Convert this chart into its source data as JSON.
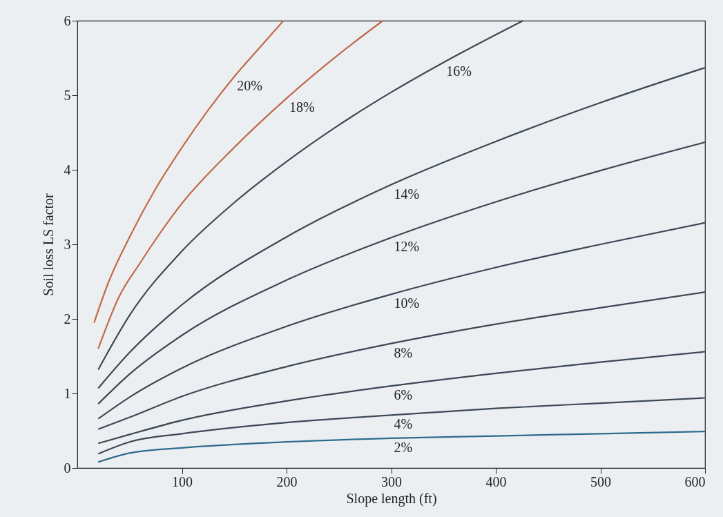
{
  "chart_data": {
    "type": "line",
    "xlabel": "Slope length (ft)",
    "ylabel": "Soil loss LS factor",
    "xlim": [
      0,
      600
    ],
    "ylim": [
      0,
      6
    ],
    "xticks": [
      100,
      200,
      300,
      400,
      500,
      600
    ],
    "yticks": [
      0,
      1,
      2,
      3,
      4,
      5,
      6
    ],
    "grid": false,
    "legend": false,
    "marker": "none",
    "line_style": "solid",
    "series": [
      {
        "name": "20%",
        "color": "#c0694a",
        "x": [
          16,
          30,
          50,
          75,
          100,
          125,
          150,
          175,
          197
        ],
        "values": [
          1.95,
          2.5,
          3.1,
          3.75,
          4.3,
          4.8,
          5.25,
          5.65,
          6
        ]
      },
      {
        "name": "18%",
        "color": "#c0694a",
        "x": [
          20,
          40,
          60,
          100,
          150,
          200,
          250,
          292
        ],
        "values": [
          1.6,
          2.3,
          2.75,
          3.55,
          4.3,
          4.96,
          5.55,
          6
        ]
      },
      {
        "name": "16%",
        "color": "#3c4856",
        "x": [
          20,
          50,
          100,
          150,
          200,
          250,
          300,
          350,
          426
        ],
        "values": [
          1.32,
          2.05,
          2.91,
          3.56,
          4.11,
          4.6,
          5.04,
          5.44,
          6
        ]
      },
      {
        "name": "14%",
        "color": "#3c4856",
        "x": [
          20,
          50,
          100,
          200,
          300,
          400,
          500,
          600
        ],
        "values": [
          1.07,
          1.55,
          2.19,
          3.1,
          3.8,
          4.38,
          4.9,
          5.37
        ]
      },
      {
        "name": "12%",
        "color": "#3c4856",
        "x": [
          20,
          50,
          100,
          200,
          300,
          400,
          500,
          600
        ],
        "values": [
          0.86,
          1.26,
          1.78,
          2.52,
          3.09,
          3.57,
          3.99,
          4.37
        ]
      },
      {
        "name": "10%",
        "color": "#3c4856",
        "x": [
          20,
          50,
          100,
          200,
          300,
          400,
          500,
          600
        ],
        "values": [
          0.66,
          0.95,
          1.34,
          1.9,
          2.33,
          2.69,
          3.0,
          3.29
        ]
      },
      {
        "name": "8%",
        "color": "#3c4856",
        "x": [
          20,
          50,
          100,
          200,
          300,
          400,
          500,
          600
        ],
        "values": [
          0.52,
          0.68,
          0.96,
          1.36,
          1.67,
          1.93,
          2.15,
          2.36
        ]
      },
      {
        "name": "6%",
        "color": "#3c4856",
        "x": [
          20,
          50,
          100,
          200,
          300,
          400,
          500,
          600
        ],
        "values": [
          0.33,
          0.45,
          0.64,
          0.9,
          1.1,
          1.27,
          1.42,
          1.56
        ]
      },
      {
        "name": "4%",
        "color": "#3c4856",
        "x": [
          20,
          50,
          100,
          200,
          300,
          400,
          500,
          600
        ],
        "values": [
          0.19,
          0.35,
          0.46,
          0.61,
          0.71,
          0.8,
          0.87,
          0.94
        ]
      },
      {
        "name": "2%",
        "color": "#2e6a8e",
        "x": [
          20,
          50,
          100,
          200,
          300,
          400,
          500,
          600
        ],
        "values": [
          0.08,
          0.2,
          0.27,
          0.35,
          0.4,
          0.43,
          0.46,
          0.49
        ]
      }
    ]
  }
}
